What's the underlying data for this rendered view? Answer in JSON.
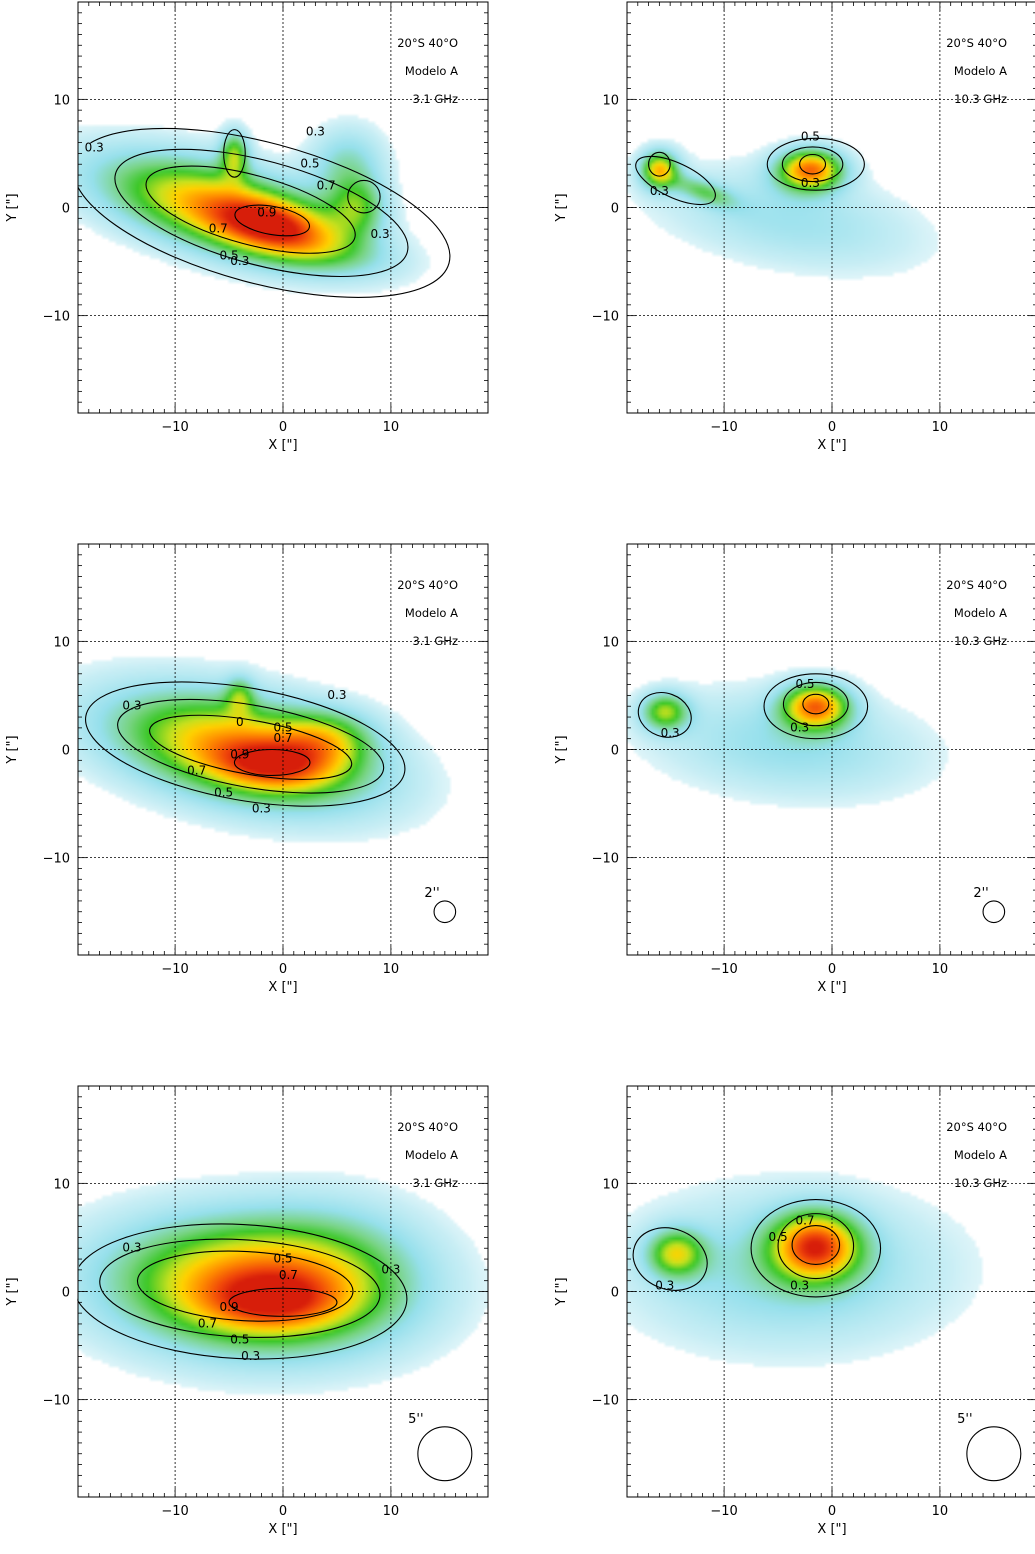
{
  "figure": {
    "xlabel": "X [\"]",
    "ylabel": "Y [\"]",
    "panels": [
      {
        "id": "r1c1",
        "info": [
          "20°S 40°O",
          "Modelo A",
          "3.1 GHz"
        ],
        "beam_label": "",
        "chart_data": {
          "type": "heatmap",
          "xlim": [
            -19,
            19
          ],
          "ylim": [
            -19,
            19
          ],
          "xticks": [
            -10,
            0,
            10
          ],
          "yticks": [
            -10,
            10
          ],
          "grid": true,
          "emission_blobs": [
            {
              "x": -6,
              "y": 0,
              "sx": 13,
              "sy": 4.5,
              "amp": 0.75,
              "rot": -15
            },
            {
              "x": -1,
              "y": -1.5,
              "sx": 6,
              "sy": 2.5,
              "amp": 0.45,
              "rot": -10
            },
            {
              "x": 7,
              "y": 0,
              "sx": 3,
              "sy": 3,
              "amp": 0.35,
              "rot": 0
            },
            {
              "x": -4.5,
              "y": 5,
              "sx": 1.5,
              "sy": 2.5,
              "amp": 0.45,
              "rot": 0
            },
            {
              "x": 3,
              "y": -4,
              "sx": 8,
              "sy": 2.5,
              "amp": 0.25,
              "rot": -8
            },
            {
              "x": 6,
              "y": 4,
              "sx": 4,
              "sy": 4,
              "amp": 0.3,
              "rot": 0
            }
          ],
          "contours": [
            {
              "level": 0.3,
              "label": "0.3",
              "cx": -2,
              "cy": -0.5,
              "rx": 18,
              "ry": 6.5,
              "rot": -15
            },
            {
              "level": 0.5,
              "label": "0.5",
              "cx": -2,
              "cy": -0.5,
              "rx": 14,
              "ry": 4.8,
              "rot": -15
            },
            {
              "level": 0.7,
              "label": "0.7",
              "cx": -3,
              "cy": -0.2,
              "rx": 10,
              "ry": 3.2,
              "rot": -15
            },
            {
              "level": 0.9,
              "label": "0.9",
              "cx": -1,
              "cy": -1.2,
              "rx": 3.5,
              "ry": 1.3,
              "rot": -10
            },
            {
              "level": 0.3,
              "label": "",
              "cx": -4.5,
              "cy": 5,
              "rx": 1,
              "ry": 2.2,
              "rot": 0
            },
            {
              "level": 0.3,
              "label": "",
              "cx": 7.5,
              "cy": 1,
              "rx": 1.5,
              "ry": 1.5,
              "rot": 0
            }
          ],
          "contour_labels": [
            {
              "text": "0.3",
              "x": -17.5,
              "y": 5.5
            },
            {
              "text": "0.3",
              "x": 3,
              "y": 7
            },
            {
              "text": "0.5",
              "x": 2.5,
              "y": 4
            },
            {
              "text": "0.7",
              "x": 4,
              "y": 2
            },
            {
              "text": "0.9",
              "x": -1.5,
              "y": -0.5
            },
            {
              "text": "0.7",
              "x": -6,
              "y": -2
            },
            {
              "text": "0.5",
              "x": -5,
              "y": -4.5
            },
            {
              "text": "0.3",
              "x": -4,
              "y": -5
            },
            {
              "text": "0.3",
              "x": 9,
              "y": -2.5
            }
          ]
        }
      },
      {
        "id": "r1c2",
        "info": [
          "20°S 40°O",
          "Modelo A",
          "10.3 GHz"
        ],
        "beam_label": "",
        "chart_data": {
          "type": "heatmap",
          "xlim": [
            -19,
            19
          ],
          "ylim": [
            -19,
            19
          ],
          "xticks": [
            -10,
            0,
            10
          ],
          "yticks": [
            -10,
            10
          ],
          "grid": true,
          "emission_blobs": [
            {
              "x": -4,
              "y": -1,
              "sx": 14,
              "sy": 5,
              "amp": 0.22,
              "rot": -10
            },
            {
              "x": -2,
              "y": 3.5,
              "sx": 3.5,
              "sy": 2.2,
              "amp": 0.8,
              "rot": 0
            },
            {
              "x": -16,
              "y": 3.5,
              "sx": 2,
              "sy": 2,
              "amp": 0.65,
              "rot": 0
            },
            {
              "x": -12,
              "y": 1.5,
              "sx": 3.5,
              "sy": 1.2,
              "amp": 0.3,
              "rot": -20
            }
          ],
          "contours": [
            {
              "level": 0.3,
              "label": "0.3",
              "cx": -1.5,
              "cy": 4,
              "rx": 4.5,
              "ry": 2.4,
              "rot": 0
            },
            {
              "level": 0.5,
              "label": "0.5",
              "cx": -1.8,
              "cy": 4,
              "rx": 2.8,
              "ry": 1.6,
              "rot": 0
            },
            {
              "level": 0.7,
              "label": "",
              "cx": -1.8,
              "cy": 4,
              "rx": 1.2,
              "ry": 0.9,
              "rot": 0
            },
            {
              "level": 0.3,
              "label": "0.3",
              "cx": -14.5,
              "cy": 2.5,
              "rx": 4,
              "ry": 1.6,
              "rot": -25
            },
            {
              "level": 0.5,
              "label": "",
              "cx": -16,
              "cy": 4,
              "rx": 1,
              "ry": 1.1,
              "rot": 0
            }
          ],
          "contour_labels": [
            {
              "text": "0.5",
              "x": -2,
              "y": 6.5
            },
            {
              "text": "0.3",
              "x": -2,
              "y": 2.2
            },
            {
              "text": "0.3",
              "x": -16,
              "y": 1.5
            }
          ]
        }
      },
      {
        "id": "r2c1",
        "info": [
          "20°S 40°O",
          "Modelo A",
          "3.1 GHz"
        ],
        "beam_label": "2''",
        "beam_size": 2,
        "chart_data": {
          "type": "heatmap",
          "xlim": [
            -19,
            19
          ],
          "ylim": [
            -19,
            19
          ],
          "xticks": [
            -10,
            0,
            10
          ],
          "yticks": [
            -10,
            10
          ],
          "grid": true,
          "emission_blobs": [
            {
              "x": -4,
              "y": 0,
              "sx": 14,
              "sy": 5.5,
              "amp": 0.78,
              "rot": -12
            },
            {
              "x": 4,
              "y": 1,
              "sx": 5,
              "sy": 3,
              "amp": 0.35,
              "rot": 0
            },
            {
              "x": -1,
              "y": -1.5,
              "sx": 6,
              "sy": 2.5,
              "amp": 0.35,
              "rot": -5
            },
            {
              "x": -4,
              "y": 5,
              "sx": 1.5,
              "sy": 2,
              "amp": 0.3,
              "rot": 0
            }
          ],
          "contours": [
            {
              "level": 0.3,
              "label": "0.3",
              "cx": -3.5,
              "cy": 0.5,
              "rx": 15,
              "ry": 5.2,
              "rot": -10
            },
            {
              "level": 0.5,
              "label": "0.5",
              "cx": -3,
              "cy": 0.3,
              "rx": 12.5,
              "ry": 3.8,
              "rot": -10
            },
            {
              "level": 0.7,
              "label": "0.7",
              "cx": -3,
              "cy": 0.2,
              "rx": 9.5,
              "ry": 2.5,
              "rot": -10
            },
            {
              "level": 0.9,
              "label": "0.9",
              "cx": -1,
              "cy": -1.2,
              "rx": 3.5,
              "ry": 1.2,
              "rot": 0
            }
          ],
          "contour_labels": [
            {
              "text": "0.3",
              "x": -14,
              "y": 4
            },
            {
              "text": "0.3",
              "x": 5,
              "y": 5
            },
            {
              "text": "0",
              "x": -4,
              "y": 2.5
            },
            {
              "text": "0.5",
              "x": 0,
              "y": 2
            },
            {
              "text": "0.7",
              "x": 0,
              "y": 1
            },
            {
              "text": "0.9",
              "x": -4,
              "y": -0.5
            },
            {
              "text": "0.7",
              "x": -8,
              "y": -2
            },
            {
              "text": "0.5",
              "x": -5.5,
              "y": -4
            },
            {
              "text": "0.3",
              "x": -2,
              "y": -5.5
            }
          ]
        }
      },
      {
        "id": "r2c2",
        "info": [
          "20°S 40°O",
          "Modelo A",
          "10.3 GHz"
        ],
        "beam_label": "2''",
        "beam_size": 2,
        "chart_data": {
          "type": "heatmap",
          "xlim": [
            -19,
            19
          ],
          "ylim": [
            -19,
            19
          ],
          "xticks": [
            -10,
            0,
            10
          ],
          "yticks": [
            -10,
            10
          ],
          "grid": true,
          "emission_blobs": [
            {
              "x": -4,
              "y": 0.5,
              "sx": 14,
              "sy": 5.5,
              "amp": 0.25,
              "rot": -5
            },
            {
              "x": -1.5,
              "y": 4,
              "sx": 3.5,
              "sy": 2.4,
              "amp": 0.75,
              "rot": 0
            },
            {
              "x": -15.5,
              "y": 3.5,
              "sx": 2.5,
              "sy": 2,
              "amp": 0.5,
              "rot": 0
            }
          ],
          "contours": [
            {
              "level": 0.3,
              "label": "0.3",
              "cx": -1.5,
              "cy": 4,
              "rx": 4.8,
              "ry": 3,
              "rot": 0
            },
            {
              "level": 0.5,
              "label": "0.5",
              "cx": -1.5,
              "cy": 4.2,
              "rx": 3,
              "ry": 2,
              "rot": 0
            },
            {
              "level": 0.7,
              "label": "",
              "cx": -1.5,
              "cy": 4.2,
              "rx": 1.2,
              "ry": 0.9,
              "rot": 0
            },
            {
              "level": 0.3,
              "label": "0.3",
              "cx": -15.5,
              "cy": 3.2,
              "rx": 2.5,
              "ry": 2,
              "rot": -20
            }
          ],
          "contour_labels": [
            {
              "text": "0.5",
              "x": -2.5,
              "y": 6
            },
            {
              "text": "0.3",
              "x": -3,
              "y": 2
            },
            {
              "text": "0.3",
              "x": -15,
              "y": 1.5
            }
          ]
        }
      },
      {
        "id": "r3c1",
        "info": [
          "20°S 40°O",
          "Modelo A",
          "3.1 GHz"
        ],
        "beam_label": "5''",
        "beam_size": 5,
        "chart_data": {
          "type": "heatmap",
          "xlim": [
            -19,
            19
          ],
          "ylim": [
            -19,
            19
          ],
          "xticks": [
            -10,
            0,
            10
          ],
          "yticks": [
            -10,
            10
          ],
          "grid": true,
          "emission_blobs": [
            {
              "x": -3,
              "y": 0.5,
              "sx": 15,
              "sy": 7,
              "amp": 0.8,
              "rot": -3
            },
            {
              "x": -1,
              "y": -1,
              "sx": 7,
              "sy": 3,
              "amp": 0.3,
              "rot": 0
            },
            {
              "x": 5,
              "y": 3,
              "sx": 10,
              "sy": 7,
              "amp": 0.18,
              "rot": 0
            }
          ],
          "contours": [
            {
              "level": 0.3,
              "label": "0.3",
              "cx": -4,
              "cy": 0,
              "rx": 15.5,
              "ry": 6.2,
              "rot": -3
            },
            {
              "level": 0.5,
              "label": "0.5",
              "cx": -4,
              "cy": 0.3,
              "rx": 13,
              "ry": 4.5,
              "rot": -3
            },
            {
              "level": 0.7,
              "label": "0.7",
              "cx": -3.5,
              "cy": 0.5,
              "rx": 10,
              "ry": 3.2,
              "rot": -3
            },
            {
              "level": 0.9,
              "label": "0.9",
              "cx": 0,
              "cy": -1,
              "rx": 5,
              "ry": 1.3,
              "rot": 0
            }
          ],
          "contour_labels": [
            {
              "text": "0.3",
              "x": -14,
              "y": 4
            },
            {
              "text": "0.5",
              "x": 0,
              "y": 3
            },
            {
              "text": "0.7",
              "x": 0.5,
              "y": 1.5
            },
            {
              "text": "0.3",
              "x": 10,
              "y": 2
            },
            {
              "text": "0.9",
              "x": -5,
              "y": -1.5
            },
            {
              "text": "0.7",
              "x": -7,
              "y": -3
            },
            {
              "text": "0.5",
              "x": -4,
              "y": -4.5
            },
            {
              "text": "0.3",
              "x": -3,
              "y": -6
            }
          ]
        }
      },
      {
        "id": "r3c2",
        "info": [
          "20°S 40°O",
          "Modelo A",
          "10.3 GHz"
        ],
        "beam_label": "5''",
        "beam_size": 5,
        "chart_data": {
          "type": "heatmap",
          "xlim": [
            -19,
            19
          ],
          "ylim": [
            -19,
            19
          ],
          "xticks": [
            -10,
            0,
            10
          ],
          "yticks": [
            -10,
            10
          ],
          "grid": true,
          "emission_blobs": [
            {
              "x": -4,
              "y": 2,
              "sx": 16,
              "sy": 8,
              "amp": 0.3,
              "rot": 0
            },
            {
              "x": -1.5,
              "y": 4.2,
              "sx": 4.5,
              "sy": 3.5,
              "amp": 0.75,
              "rot": 0
            },
            {
              "x": -14.5,
              "y": 3.5,
              "sx": 3,
              "sy": 2.5,
              "amp": 0.5,
              "rot": 0
            }
          ],
          "contours": [
            {
              "level": 0.3,
              "label": "0.3",
              "cx": -1.5,
              "cy": 4,
              "rx": 6,
              "ry": 4.5,
              "rot": 0
            },
            {
              "level": 0.5,
              "label": "0.5",
              "cx": -1.5,
              "cy": 4.2,
              "rx": 3.5,
              "ry": 3,
              "rot": 0
            },
            {
              "level": 0.7,
              "label": "0.7",
              "cx": -1.5,
              "cy": 4.3,
              "rx": 2.2,
              "ry": 1.8,
              "rot": 0
            },
            {
              "level": 0.3,
              "label": "0.3",
              "cx": -15,
              "cy": 3,
              "rx": 3.5,
              "ry": 2.8,
              "rot": -20
            }
          ],
          "contour_labels": [
            {
              "text": "0.5",
              "x": -5,
              "y": 5
            },
            {
              "text": "0.7",
              "x": -2.5,
              "y": 6.5
            },
            {
              "text": "0.3",
              "x": -3,
              "y": 0.5
            },
            {
              "text": "0.3",
              "x": -15.5,
              "y": 0.5
            }
          ]
        }
      }
    ]
  }
}
